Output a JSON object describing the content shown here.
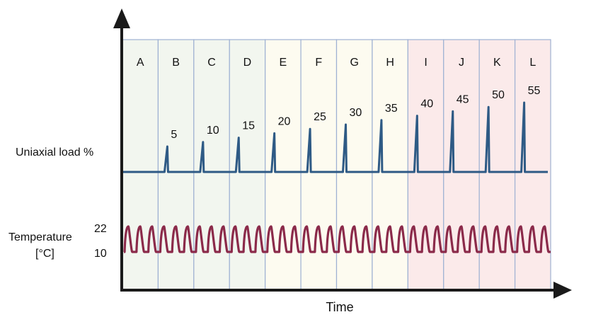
{
  "labels": {
    "y_top": "Uniaxial load %",
    "y_bottom_line1": "Temperature",
    "y_bottom_line2": "[°C]",
    "temp_high": "22",
    "temp_low": "10",
    "x_axis": "Time"
  },
  "stages": [
    {
      "letter": "A",
      "load": "",
      "phase": "green"
    },
    {
      "letter": "B",
      "load": "5",
      "phase": "green"
    },
    {
      "letter": "C",
      "load": "10",
      "phase": "green"
    },
    {
      "letter": "D",
      "load": "15",
      "phase": "green"
    },
    {
      "letter": "E",
      "load": "20",
      "phase": "yellow"
    },
    {
      "letter": "F",
      "load": "25",
      "phase": "yellow"
    },
    {
      "letter": "G",
      "load": "30",
      "phase": "yellow"
    },
    {
      "letter": "H",
      "load": "35",
      "phase": "yellow"
    },
    {
      "letter": "I",
      "load": "40",
      "phase": "pink"
    },
    {
      "letter": "J",
      "load": "45",
      "phase": "pink"
    },
    {
      "letter": "K",
      "load": "50",
      "phase": "pink"
    },
    {
      "letter": "L",
      "load": "55",
      "phase": "pink"
    }
  ],
  "cycles_per_stage": 3,
  "colors": {
    "green": "#f2f6ef",
    "yellow": "#fdfbf0",
    "pink": "#fbeaea",
    "divider": "#9eb1d3",
    "load_line": "#2e5a85",
    "temp_line": "#8b2a4a",
    "axis": "#1a1a1a"
  }
}
